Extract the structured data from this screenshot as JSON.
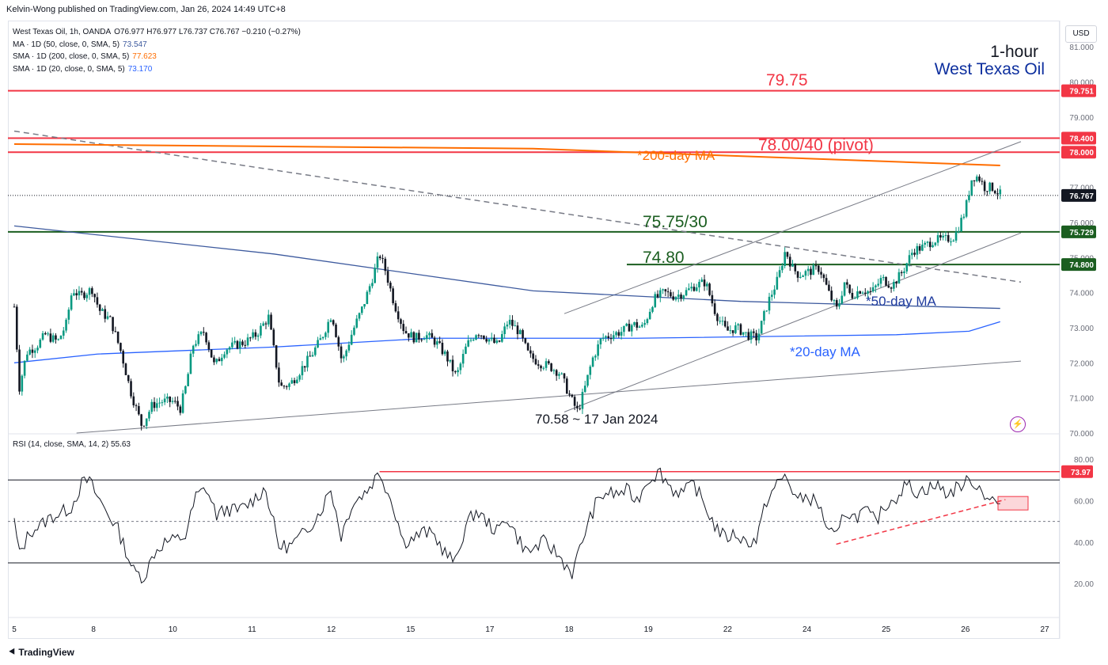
{
  "header": {
    "published_by": "Kelvin-Wong published on TradingView.com, Jan 26, 2024 14:49 UTC+8"
  },
  "legend": {
    "symbol_line": "West Texas Oil, 1h, OANDA",
    "ohlc": "O76.977 H76.977 L76.737 C76.767 −0.210 (−0.27%)",
    "ma1_label": "MA · 1D (50, close, 0, SMA, 5)",
    "ma1_value": "73.547",
    "ma2_label": "SMA · 1D (200, close, 0, SMA, 5)",
    "ma2_value": "77.623",
    "ma3_label": "SMA · 1D (20, close, 0, SMA, 5)",
    "ma3_value": "73.170"
  },
  "rsi_legend": {
    "label": "RSI (14, close, SMA, 14, 2)",
    "value": "55.63"
  },
  "currency_button": "USD",
  "brand": "TradingView",
  "colors": {
    "up": "#089981",
    "down": "#131722",
    "resistance": "#f23645",
    "support": "#1b5e20",
    "ma200": "#ff6d00",
    "ma50": "#2962ff",
    "ma20": "#2962ff",
    "ma_dark": "#3d5a9e",
    "channel": "#787b86",
    "title_blue": "#0d2f9e",
    "annot_blue": "#1e3a9e"
  },
  "chart_data": [
    {
      "type": "candlestick",
      "title": "1-hour",
      "subtitle": "West Texas Oil",
      "ylim": [
        69.9,
        81.4
      ],
      "x_tick_labels": [
        "5",
        "8",
        "10",
        "11",
        "12",
        "15",
        "17",
        "18",
        "19",
        "22",
        "24",
        "25",
        "26",
        "27"
      ],
      "y_tick_labels": [
        "81.000",
        "80.000",
        "79.000",
        "78.000",
        "77.000",
        "76.000",
        "75.000",
        "74.000",
        "73.000",
        "72.000",
        "71.000",
        "70.000"
      ],
      "price_path": [
        [
          0.0,
          73.6
        ],
        [
          0.5,
          71.3
        ],
        [
          1.2,
          72.3
        ],
        [
          2.2,
          72.5
        ],
        [
          3.0,
          72.8
        ],
        [
          4.2,
          72.6
        ],
        [
          5.0,
          73.1
        ],
        [
          5.6,
          74.1
        ],
        [
          6.3,
          73.9
        ],
        [
          7.5,
          74.1
        ],
        [
          8.2,
          73.5
        ],
        [
          9.3,
          73.2
        ],
        [
          10.3,
          72.3
        ],
        [
          11.2,
          71.2
        ],
        [
          12.3,
          70.2
        ],
        [
          13.3,
          70.8
        ],
        [
          14.2,
          70.9
        ],
        [
          15.3,
          70.9
        ],
        [
          16.0,
          70.7
        ],
        [
          16.6,
          71.4
        ],
        [
          17.2,
          72.5
        ],
        [
          18.3,
          72.9
        ],
        [
          19.3,
          71.9
        ],
        [
          20.3,
          72.4
        ],
        [
          21.3,
          72.5
        ],
        [
          22.3,
          72.6
        ],
        [
          23.3,
          72.8
        ],
        [
          24.5,
          73.3
        ],
        [
          25.6,
          71.3
        ],
        [
          26.6,
          71.4
        ],
        [
          27.6,
          71.8
        ],
        [
          28.6,
          72.2
        ],
        [
          29.6,
          72.7
        ],
        [
          30.6,
          73.4
        ],
        [
          31.6,
          72.0
        ],
        [
          32.6,
          72.9
        ],
        [
          33.6,
          73.6
        ],
        [
          34.6,
          74.5
        ],
        [
          35.2,
          75.1
        ],
        [
          35.8,
          74.6
        ],
        [
          36.6,
          73.7
        ],
        [
          37.6,
          72.9
        ],
        [
          38.6,
          72.7
        ],
        [
          39.6,
          72.8
        ],
        [
          40.6,
          72.6
        ],
        [
          41.6,
          72.2
        ],
        [
          42.6,
          71.6
        ],
        [
          43.6,
          72.5
        ],
        [
          44.6,
          72.9
        ],
        [
          45.6,
          72.7
        ],
        [
          46.6,
          72.5
        ],
        [
          47.6,
          73.2
        ],
        [
          48.6,
          72.9
        ],
        [
          49.6,
          72.2
        ],
        [
          50.6,
          72.0
        ],
        [
          51.6,
          71.9
        ],
        [
          52.6,
          71.7
        ],
        [
          53.6,
          71.0
        ],
        [
          54.3,
          70.6
        ],
        [
          55.0,
          71.3
        ],
        [
          55.7,
          72.1
        ],
        [
          56.6,
          72.7
        ],
        [
          57.6,
          72.8
        ],
        [
          58.6,
          72.9
        ],
        [
          59.6,
          73.1
        ],
        [
          60.6,
          73.0
        ],
        [
          61.6,
          73.8
        ],
        [
          62.6,
          74.0
        ],
        [
          63.6,
          73.9
        ],
        [
          64.6,
          74.0
        ],
        [
          65.6,
          74.2
        ],
        [
          66.6,
          74.3
        ],
        [
          67.6,
          73.4
        ],
        [
          68.6,
          72.9
        ],
        [
          69.6,
          73.0
        ],
        [
          70.6,
          72.8
        ],
        [
          71.6,
          72.7
        ],
        [
          72.6,
          73.7
        ],
        [
          73.6,
          74.4
        ],
        [
          74.3,
          75.2
        ],
        [
          75.0,
          74.7
        ],
        [
          75.6,
          74.5
        ],
        [
          76.6,
          74.6
        ],
        [
          77.6,
          74.7
        ],
        [
          78.6,
          73.9
        ],
        [
          79.3,
          73.5
        ],
        [
          80.0,
          74.3
        ],
        [
          80.6,
          73.9
        ],
        [
          81.6,
          74.1
        ],
        [
          82.6,
          74.0
        ],
        [
          83.6,
          74.4
        ],
        [
          84.6,
          74.2
        ],
        [
          85.6,
          74.6
        ],
        [
          86.6,
          75.2
        ],
        [
          87.6,
          75.3
        ],
        [
          88.6,
          75.5
        ],
        [
          89.6,
          75.5
        ],
        [
          90.6,
          75.6
        ],
        [
          91.6,
          76.3
        ],
        [
          92.3,
          77.3
        ],
        [
          92.9,
          77.3
        ],
        [
          93.5,
          77.0
        ],
        [
          94.2,
          77.0
        ],
        [
          95.0,
          76.8
        ]
      ],
      "moving_averages": [
        {
          "name": "*200-day MA",
          "points": [
            [
              0,
              78.23
            ],
            [
              50,
              78.1
            ],
            [
              95,
              77.62
            ]
          ]
        },
        {
          "name": "*50-day MA",
          "points": [
            [
              0,
              75.9
            ],
            [
              25,
              75.1
            ],
            [
              50,
              74.05
            ],
            [
              70,
              73.75
            ],
            [
              95,
              73.55
            ]
          ]
        },
        {
          "name": "*20-day MA",
          "points": [
            [
              0,
              72.0
            ],
            [
              8,
              72.25
            ],
            [
              25,
              72.45
            ],
            [
              40,
              72.7
            ],
            [
              60,
              72.7
            ],
            [
              85,
              72.8
            ],
            [
              92,
              72.9
            ],
            [
              95,
              73.17
            ]
          ]
        }
      ],
      "horizontal_levels": [
        {
          "label": "79.75",
          "value": 79.75,
          "axis_label": "79.751",
          "color": "#f23645"
        },
        {
          "label": "78.00/40 (pivot)",
          "value": 78.4,
          "axis_label": "78.400",
          "color": "#f23645"
        },
        {
          "label": "",
          "value": 78.0,
          "axis_label": "78.000",
          "color": "#f23645"
        },
        {
          "label": "75.75/30",
          "value": 75.73,
          "axis_label": "75.729",
          "color": "#1b5e20"
        },
        {
          "label": "74.80",
          "value": 74.8,
          "axis_label": "74.800",
          "color": "#1b5e20"
        }
      ],
      "last_price": {
        "value": 76.767,
        "axis_label": "76.767"
      },
      "trendlines": [
        {
          "kind": "dashed-downtrend",
          "from": [
            0,
            78.6
          ],
          "to": [
            97,
            74.3
          ]
        },
        {
          "kind": "channel-upper",
          "from": [
            53,
            73.4
          ],
          "to": [
            97,
            78.3
          ]
        },
        {
          "kind": "channel-lower",
          "from": [
            53,
            70.6
          ],
          "to": [
            97,
            75.7
          ]
        },
        {
          "kind": "long-support",
          "from": [
            6,
            70.0
          ],
          "to": [
            97,
            72.05
          ]
        }
      ],
      "annotations": [
        "70.58 ~ 17 Jan 2024"
      ]
    },
    {
      "type": "line",
      "title": "RSI (14, close, SMA, 14, 2)",
      "ylim": [
        12,
        85
      ],
      "y_tick_labels": [
        "80.00",
        "60.00",
        "40.00",
        "20.00"
      ],
      "reference_lines": [
        70,
        50,
        30
      ],
      "resistance": {
        "value": 73.97,
        "axis_label": "73.97"
      },
      "rsi_path": [
        [
          0,
          50
        ],
        [
          0.5,
          34
        ],
        [
          1.5,
          45
        ],
        [
          2.5,
          48
        ],
        [
          3.5,
          52
        ],
        [
          4.5,
          54
        ],
        [
          5.5,
          57
        ],
        [
          6.5,
          68
        ],
        [
          7.2,
          70
        ],
        [
          8,
          62
        ],
        [
          9,
          54
        ],
        [
          10,
          46
        ],
        [
          11.5,
          26
        ],
        [
          12.5,
          23
        ],
        [
          13.5,
          35
        ],
        [
          14.5,
          40
        ],
        [
          15.5,
          41
        ],
        [
          16.5,
          43
        ],
        [
          17.5,
          62
        ],
        [
          18.5,
          66
        ],
        [
          19.5,
          53
        ],
        [
          20.5,
          56
        ],
        [
          21.5,
          55
        ],
        [
          22.5,
          58
        ],
        [
          24.2,
          66
        ],
        [
          25.5,
          38
        ],
        [
          26.5,
          38
        ],
        [
          27.5,
          42
        ],
        [
          28.5,
          48
        ],
        [
          29.5,
          55
        ],
        [
          30.5,
          66
        ],
        [
          31.5,
          43
        ],
        [
          32.5,
          58
        ],
        [
          34,
          65
        ],
        [
          35.2,
          73.97
        ],
        [
          36.5,
          58
        ],
        [
          37.5,
          40
        ],
        [
          38.5,
          42
        ],
        [
          39.5,
          45
        ],
        [
          40.5,
          43
        ],
        [
          41.5,
          35
        ],
        [
          42.5,
          30
        ],
        [
          43.5,
          48
        ],
        [
          44.5,
          55
        ],
        [
          45.5,
          50
        ],
        [
          46.5,
          45
        ],
        [
          47.5,
          52
        ],
        [
          48.5,
          42
        ],
        [
          49.5,
          35
        ],
        [
          51,
          40
        ],
        [
          52,
          36
        ],
        [
          53,
          30
        ],
        [
          53.8,
          25
        ],
        [
          55,
          45
        ],
        [
          56,
          58
        ],
        [
          57,
          64
        ],
        [
          58,
          63
        ],
        [
          59,
          65
        ],
        [
          60,
          60
        ],
        [
          61,
          70
        ],
        [
          62.2,
          73.97
        ],
        [
          63.5,
          65
        ],
        [
          64.5,
          64
        ],
        [
          65.5,
          68
        ],
        [
          66.5,
          58
        ],
        [
          67.5,
          48
        ],
        [
          68.5,
          42
        ],
        [
          69.5,
          44
        ],
        [
          70.5,
          40
        ],
        [
          71.5,
          41
        ],
        [
          72.5,
          60
        ],
        [
          73.5,
          68
        ],
        [
          74.3,
          72
        ],
        [
          75.5,
          60
        ],
        [
          76.5,
          62
        ],
        [
          77.5,
          58
        ],
        [
          78.5,
          45
        ],
        [
          79.3,
          42
        ],
        [
          80,
          55
        ],
        [
          81,
          52
        ],
        [
          82,
          55
        ],
        [
          83,
          50
        ],
        [
          84,
          58
        ],
        [
          85,
          62
        ],
        [
          86,
          68
        ],
        [
          87,
          64
        ],
        [
          88,
          66
        ],
        [
          89,
          67
        ],
        [
          90,
          63
        ],
        [
          91,
          67
        ],
        [
          92.3,
          70
        ],
        [
          93,
          66
        ],
        [
          94,
          61
        ],
        [
          95,
          58
        ]
      ],
      "annotation": "rising-support-trendline"
    }
  ]
}
